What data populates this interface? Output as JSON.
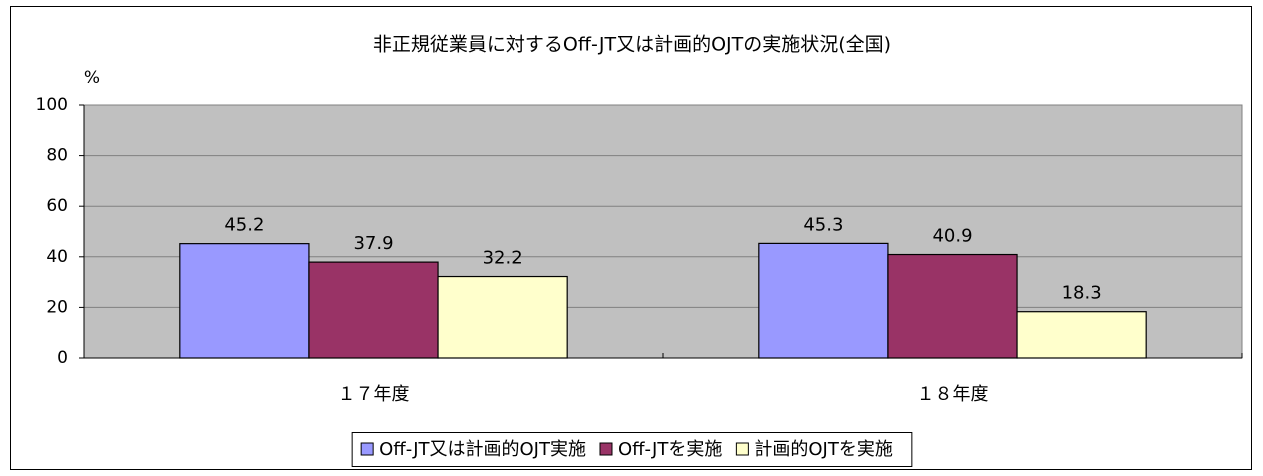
{
  "chart_data": {
    "type": "bar",
    "title": "非正規従業員に対するOff-JT又は計画的OJTの実施状況(全国)",
    "y_label": "%",
    "categories": [
      "１７年度",
      "１８年度"
    ],
    "series": [
      {
        "name": "Off-JT又は計画的OJT実施",
        "color": "#9999ff",
        "values": [
          45.2,
          45.3
        ]
      },
      {
        "name": "Off-JTを実施",
        "color": "#993366",
        "values": [
          37.9,
          40.9
        ]
      },
      {
        "name": "計画的OJTを実施",
        "color": "#ffffcc",
        "values": [
          32.2,
          18.3
        ]
      }
    ],
    "ylim": [
      0,
      100
    ],
    "yticks": [
      0,
      20,
      40,
      60,
      80,
      100
    ],
    "grid": true,
    "plot_background": "#c0c0c0",
    "legend": "bottom"
  }
}
